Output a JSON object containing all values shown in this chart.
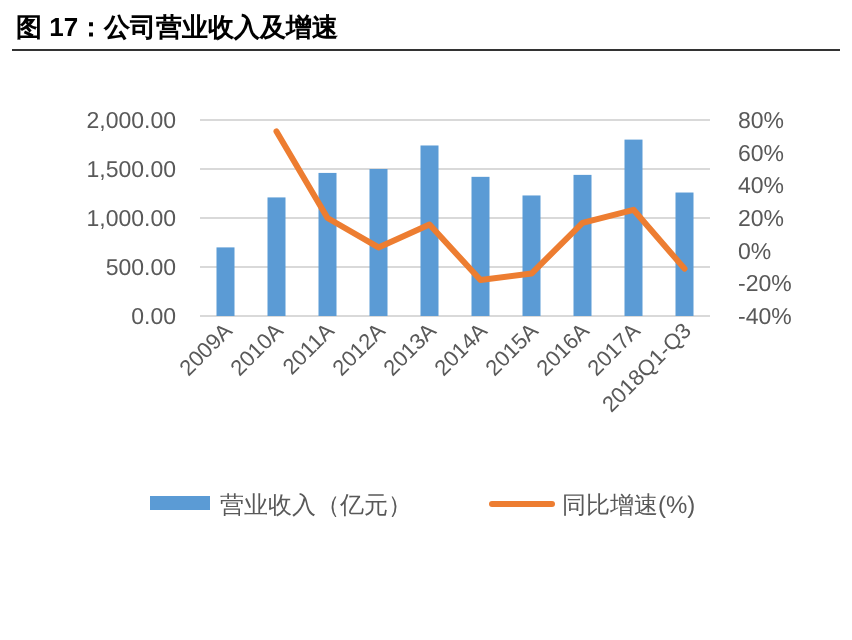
{
  "chart_data": {
    "type": "bar",
    "title": "图 17：公司营业收入及增速",
    "categories": [
      "2009A",
      "2010A",
      "2011A",
      "2012A",
      "2013A",
      "2014A",
      "2015A",
      "2016A",
      "2017A",
      "2018Q1-Q3"
    ],
    "series": [
      {
        "name": "营业收入（亿元）",
        "color": "#5b9bd5",
        "values": [
          700,
          1210,
          1460,
          1500,
          1740,
          1420,
          1230,
          1440,
          1800,
          1260
        ]
      },
      {
        "name": "同比增速(%)",
        "type": "line",
        "axis": "y2",
        "color": "#ed7d31",
        "values": [
          null,
          73,
          20,
          2,
          16,
          -18,
          -14,
          17,
          25,
          -11
        ]
      }
    ],
    "ylim": [
      0,
      2000
    ],
    "yticks": [
      {
        "value": 0,
        "label": "0.00"
      },
      {
        "value": 500,
        "label": "500.00"
      },
      {
        "value": 1000,
        "label": "1,000.00"
      },
      {
        "value": 1500,
        "label": "1,500.00"
      },
      {
        "value": 2000,
        "label": "2,000.00"
      }
    ],
    "y2lim": [
      -40,
      80
    ],
    "y2ticks": [
      {
        "value": -40,
        "label": "-40%"
      },
      {
        "value": -20,
        "label": "-20%"
      },
      {
        "value": 0,
        "label": "0%"
      },
      {
        "value": 20,
        "label": "20%"
      },
      {
        "value": 40,
        "label": "40%"
      },
      {
        "value": 60,
        "label": "60%"
      },
      {
        "value": 80,
        "label": "80%"
      }
    ],
    "grid": "y",
    "legend": "bottom",
    "marker": "none"
  }
}
